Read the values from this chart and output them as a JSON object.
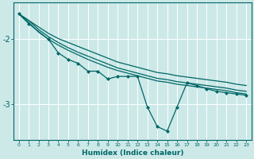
{
  "xlabel": "Humidex (Indice chaleur)",
  "bg_color": "#cce9e8",
  "line_color": "#006666",
  "grid_color": "#ffffff",
  "x_min": -0.5,
  "x_max": 23.5,
  "y_min": -3.55,
  "y_max": -1.45,
  "yticks": [
    -3,
    -2
  ],
  "ytick_labels": [
    "-3",
    "-2"
  ],
  "line1_x": [
    0,
    1,
    2,
    3,
    4,
    5,
    6,
    7,
    8,
    9,
    10,
    11,
    12,
    13,
    14,
    15,
    16,
    17,
    18,
    19,
    20,
    21,
    22,
    23
  ],
  "line1_y": [
    -1.62,
    -1.72,
    -1.82,
    -1.92,
    -2.0,
    -2.06,
    -2.12,
    -2.18,
    -2.24,
    -2.3,
    -2.36,
    -2.4,
    -2.44,
    -2.48,
    -2.52,
    -2.54,
    -2.57,
    -2.59,
    -2.61,
    -2.63,
    -2.65,
    -2.67,
    -2.7,
    -2.72
  ],
  "line2_x": [
    0,
    1,
    2,
    3,
    4,
    5,
    6,
    7,
    8,
    9,
    10,
    11,
    12,
    13,
    14,
    15,
    16,
    17,
    18,
    19,
    20,
    21,
    22,
    23
  ],
  "line2_y": [
    -1.62,
    -1.72,
    -1.86,
    -1.97,
    -2.06,
    -2.14,
    -2.21,
    -2.27,
    -2.33,
    -2.39,
    -2.45,
    -2.49,
    -2.53,
    -2.57,
    -2.61,
    -2.63,
    -2.66,
    -2.68,
    -2.7,
    -2.72,
    -2.74,
    -2.76,
    -2.79,
    -2.81
  ],
  "line3_x": [
    0,
    1,
    2,
    3,
    4,
    5,
    6,
    7,
    8,
    9,
    10,
    11,
    12,
    13,
    14,
    15,
    16,
    17,
    18,
    19,
    20,
    21,
    22,
    23
  ],
  "line3_y": [
    -1.62,
    -1.75,
    -1.9,
    -2.01,
    -2.1,
    -2.18,
    -2.25,
    -2.32,
    -2.38,
    -2.44,
    -2.49,
    -2.53,
    -2.57,
    -2.61,
    -2.65,
    -2.67,
    -2.7,
    -2.72,
    -2.74,
    -2.76,
    -2.78,
    -2.8,
    -2.83,
    -2.85
  ],
  "main_x": [
    0,
    1,
    3,
    4,
    5,
    6,
    7,
    8,
    9,
    10,
    11,
    12,
    13,
    14,
    15,
    16,
    17,
    18,
    19,
    20,
    21,
    22,
    23
  ],
  "main_y": [
    -1.62,
    -1.77,
    -2.01,
    -2.22,
    -2.32,
    -2.38,
    -2.5,
    -2.5,
    -2.62,
    -2.58,
    -2.58,
    -2.58,
    -3.05,
    -3.35,
    -3.42,
    -3.05,
    -2.68,
    -2.72,
    -2.77,
    -2.81,
    -2.83,
    -2.85,
    -2.87
  ]
}
